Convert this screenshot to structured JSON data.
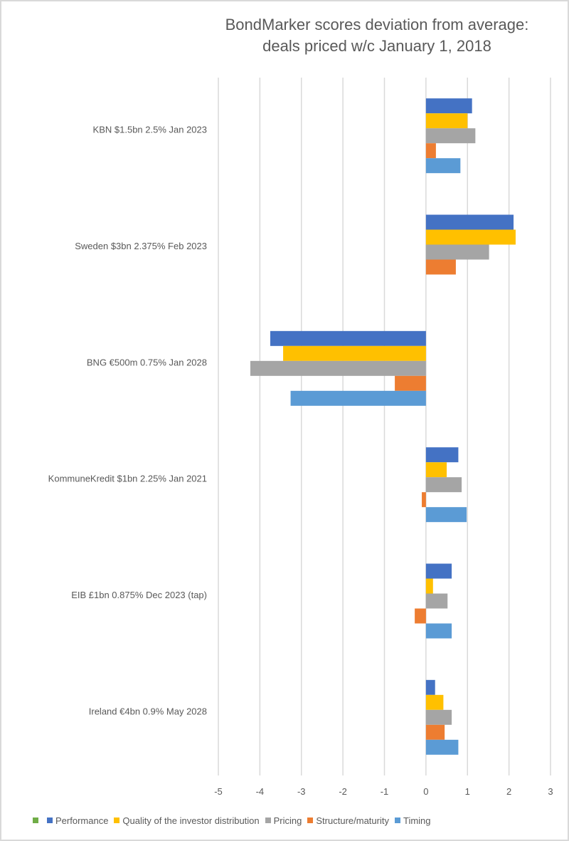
{
  "chart_data": {
    "type": "bar",
    "orientation": "horizontal",
    "title": "BondMarker scores deviation from average: deals priced w/c January 1, 2018",
    "title_lines": [
      "BondMarker scores deviation from average:",
      "deals priced w/c January 1, 2018"
    ],
    "xlabel": "",
    "ylabel": "",
    "xlim": [
      -5,
      3
    ],
    "x_ticks": [
      -5,
      -4,
      -3,
      -2,
      -1,
      0,
      1,
      2,
      3
    ],
    "grid": "vertical",
    "legend_position": "bottom",
    "categories": [
      "KBN $1.5bn 2.5% Jan 2023",
      "Sweden $3bn 2.375% Feb 2023",
      "BNG €500m 0.75% Jan 2028",
      "KommuneKredit $1bn 2.25% Jan 2021",
      "EIB £1bn 0.875% Dec 2023 (tap)",
      "Ireland €4bn 0.9% May 2028"
    ],
    "legend_extra": [
      {
        "name": "",
        "color": "#70ad47"
      }
    ],
    "series": [
      {
        "name": "Performance",
        "color": "#4472c4",
        "values": [
          1.11,
          2.11,
          -3.75,
          0.78,
          0.62,
          0.22
        ]
      },
      {
        "name": "Quality of the investor distribution",
        "color": "#ffc000",
        "values": [
          1.0,
          2.16,
          -3.44,
          0.5,
          0.17,
          0.42
        ]
      },
      {
        "name": "Pricing",
        "color": "#a5a5a5",
        "values": [
          1.19,
          1.52,
          -4.23,
          0.86,
          0.52,
          0.62
        ]
      },
      {
        "name": "Structure/maturity",
        "color": "#ed7d31",
        "values": [
          0.24,
          0.72,
          -0.75,
          -0.1,
          -0.27,
          0.45
        ]
      },
      {
        "name": "Timing",
        "color": "#5b9bd5",
        "values": [
          0.83,
          0,
          -3.26,
          0.98,
          0.62,
          0.78
        ]
      }
    ]
  }
}
